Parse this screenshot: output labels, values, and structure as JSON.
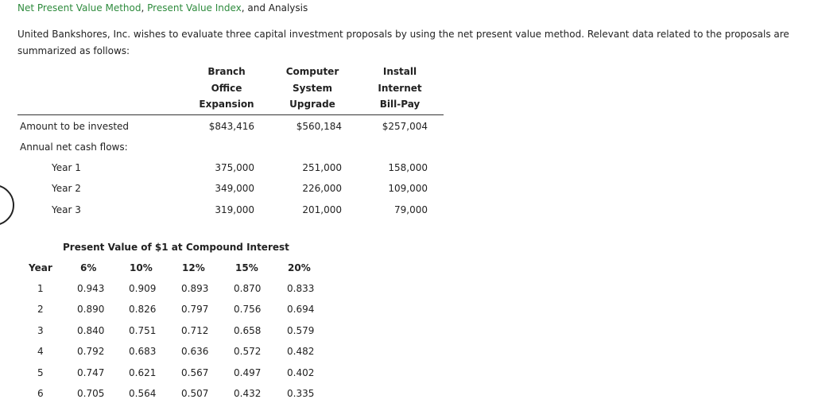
{
  "title": {
    "part1": "Net Present Value Method",
    "sep1": ", ",
    "part2": "Present Value Index",
    "part3": ", and Analysis"
  },
  "intro": "United Bankshores, Inc. wishes to evaluate three capital investment proposals by using the net present value method. Relevant data related to the proposals are summarized as follows:",
  "proposals": {
    "headers": [
      [
        "Branch",
        "Office",
        "Expansion"
      ],
      [
        "Computer",
        "System",
        "Upgrade"
      ],
      [
        "Install",
        "Internet",
        "Bill-Pay"
      ]
    ],
    "amount_label": "Amount to be invested",
    "amounts": [
      "$843,416",
      "$560,184",
      "$257,004"
    ],
    "cash_flows_label": "Annual net cash flows:",
    "years": [
      {
        "label": "Year 1",
        "values": [
          "375,000",
          "251,000",
          "158,000"
        ]
      },
      {
        "label": "Year 2",
        "values": [
          "349,000",
          "226,000",
          "109,000"
        ]
      },
      {
        "label": "Year 3",
        "values": [
          "319,000",
          "201,000",
          "79,000"
        ]
      }
    ]
  },
  "pv_table": {
    "title": "Present Value of $1 at Compound Interest",
    "year_header": "Year",
    "rates": [
      "6%",
      "10%",
      "12%",
      "15%",
      "20%"
    ],
    "rows": [
      {
        "year": "1",
        "values": [
          "0.943",
          "0.909",
          "0.893",
          "0.870",
          "0.833"
        ]
      },
      {
        "year": "2",
        "values": [
          "0.890",
          "0.826",
          "0.797",
          "0.756",
          "0.694"
        ]
      },
      {
        "year": "3",
        "values": [
          "0.840",
          "0.751",
          "0.712",
          "0.658",
          "0.579"
        ]
      },
      {
        "year": "4",
        "values": [
          "0.792",
          "0.683",
          "0.636",
          "0.572",
          "0.482"
        ]
      },
      {
        "year": "5",
        "values": [
          "0.747",
          "0.621",
          "0.567",
          "0.497",
          "0.402"
        ]
      },
      {
        "year": "6",
        "values": [
          "0.705",
          "0.564",
          "0.507",
          "0.432",
          "0.335"
        ]
      }
    ]
  }
}
